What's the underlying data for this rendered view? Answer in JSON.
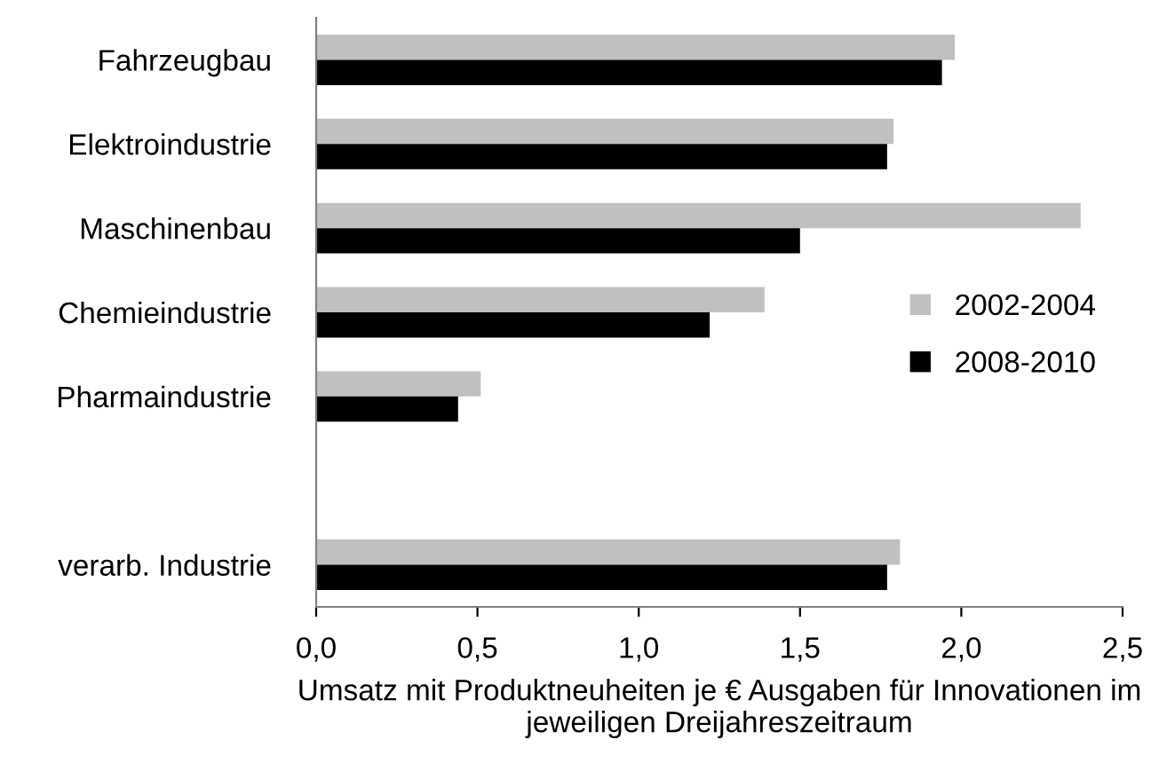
{
  "chart_data": {
    "type": "bar",
    "orientation": "horizontal",
    "xlabel": "Umsatz mit Produktneuheiten je € Ausgaben für Innovationen im jeweiligen Dreijahreszeitraum",
    "categories": [
      "Fahrzeugbau",
      "Elektroindustrie",
      "Maschinenbau",
      "Chemieindustrie",
      "Pharmaindustrie",
      null,
      "verarb. Industrie"
    ],
    "series": [
      {
        "name": "2002-2004",
        "color": "#c0c0c0",
        "values": [
          1.98,
          1.79,
          2.37,
          1.39,
          0.51,
          null,
          1.81
        ]
      },
      {
        "name": "2008-2010",
        "color": "#000000",
        "values": [
          1.94,
          1.77,
          1.5,
          1.22,
          0.44,
          null,
          1.77
        ]
      }
    ],
    "xlim": [
      0,
      2.5
    ],
    "xticks": [
      {
        "value": 0,
        "label": "0,0"
      },
      {
        "value": 0.5,
        "label": "0,5"
      },
      {
        "value": 1.0,
        "label": "1,0"
      },
      {
        "value": 1.5,
        "label": "1,5"
      },
      {
        "value": 2.0,
        "label": "2,0"
      },
      {
        "value": 2.5,
        "label": "2,5"
      }
    ],
    "grid": false,
    "legend": "right"
  }
}
